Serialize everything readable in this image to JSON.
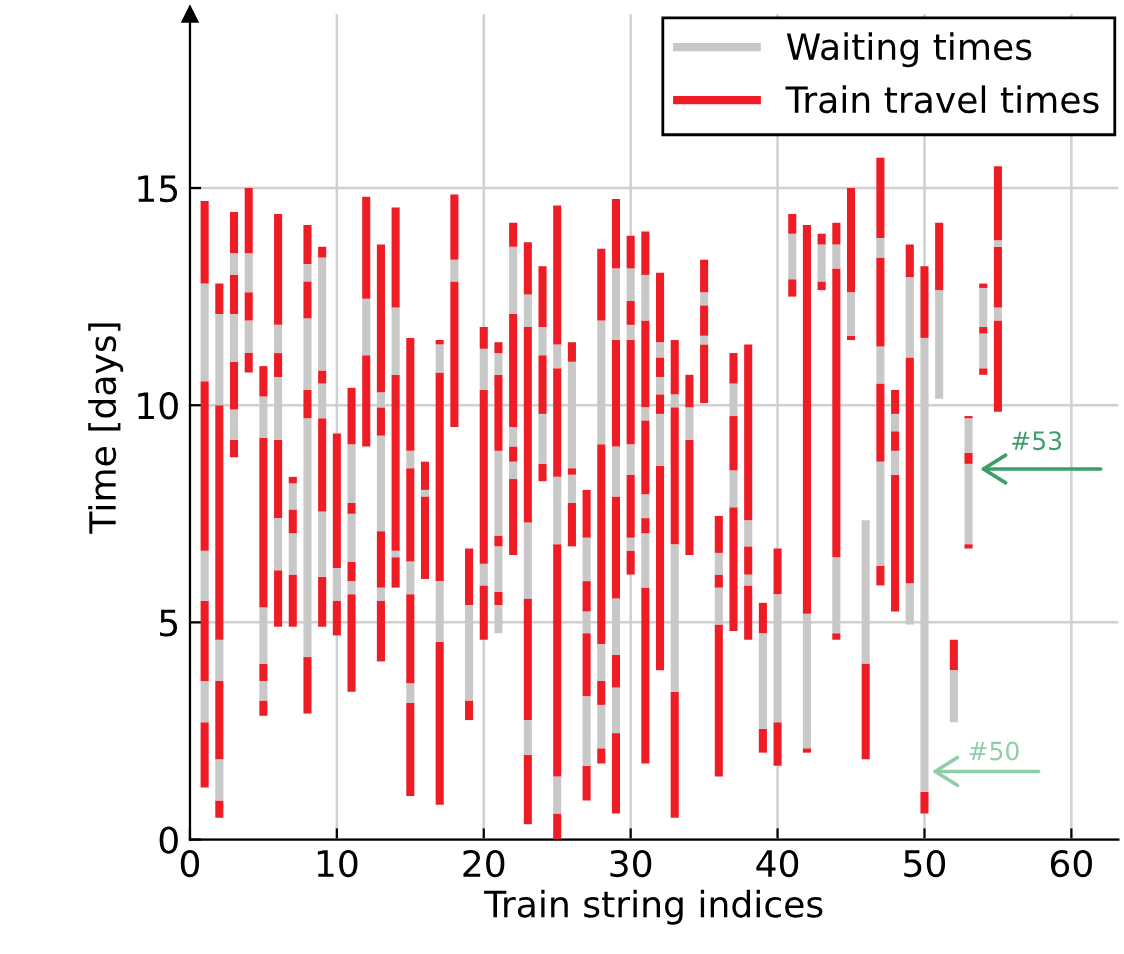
{
  "chart_data": {
    "type": "bar",
    "xlabel": "Train string indices",
    "ylabel": "Time [days]",
    "x": [
      1,
      2,
      3,
      4,
      5,
      6,
      7,
      8,
      9,
      10,
      11,
      12,
      13,
      14,
      15,
      16,
      17,
      18,
      19,
      20,
      21,
      22,
      23,
      24,
      25,
      26,
      27,
      28,
      29,
      30,
      31,
      32,
      33,
      34,
      35,
      36,
      37,
      38,
      39,
      40,
      41,
      42,
      43,
      44,
      45,
      46,
      47,
      48,
      49,
      50,
      51,
      52,
      53,
      54,
      55
    ],
    "series": [
      {
        "name": "Train travel times",
        "color": "#ee1c25",
        "base": [
          1.2,
          0.5,
          8.8,
          10.75,
          2.85,
          4.9,
          4.9,
          2.9,
          4.9,
          4.7,
          3.4,
          9.05,
          4.1,
          5.8,
          1.0,
          6.0,
          0.8,
          9.5,
          2.75,
          4.6,
          null,
          6.55,
          0.35,
          8.25,
          0,
          6.75,
          0.9,
          1.75,
          0.6,
          6.1,
          1.75,
          3.9,
          0.5,
          6.55,
          10.05,
          1.45,
          4.8,
          4.6,
          2.0,
          1.7,
          12.5,
          2.0,
          12.65,
          4.6,
          11.5,
          1.85,
          5.85,
          5.25,
          null,
          0.6,
          null,
          null,
          6.7,
          10.7,
          9.85
        ],
        "values": [
          1.5,
          0.4,
          0.4,
          0.45,
          0.35,
          1.3,
          1.2,
          1.3,
          1.15,
          0.8,
          2.25,
          2.1,
          1.4,
          0.7,
          2.15,
          1.9,
          3.75,
          3.35,
          0.45,
          1.25,
          null,
          1.75,
          1.6,
          0.4,
          0.6,
          1.0,
          0.8,
          0.35,
          1.85,
          0.55,
          4.05,
          4.7,
          2.9,
          2.65,
          1.35,
          3.5,
          2.85,
          1.25,
          0.55,
          1.0,
          0.4,
          0.1,
          0.2,
          0.15,
          0.1,
          2.2,
          0.45,
          3.15,
          null,
          0.5,
          null,
          null,
          0.1,
          0.15,
          2.1
        ]
      },
      {
        "name": "Waiting times",
        "color": "#c8c8c8",
        "base": [
          2.7,
          0.9,
          9.2,
          11.2,
          3.2,
          6.2,
          6.1,
          4.2,
          6.05,
          5.5,
          5.65,
          11.15,
          5.5,
          6.5,
          3.15,
          7.9,
          4.55,
          12.85,
          3.2,
          5.85,
          4.75,
          8.3,
          1.95,
          8.65,
          0.6,
          7.75,
          1.7,
          2.1,
          2.45,
          6.65,
          5.8,
          8.6,
          3.4,
          9.2,
          11.4,
          4.95,
          7.65,
          5.85,
          2.55,
          2.7,
          12.9,
          2.1,
          12.85,
          4.75,
          11.6,
          4.05,
          6.3,
          8.4,
          4.95,
          1.1,
          10.15,
          2.7,
          6.8,
          10.85,
          11.95
        ],
        "values": [
          0.95,
          0.95,
          0.7,
          0.75,
          0.45,
          1.2,
          0.95,
          5.5,
          1.5,
          0.75,
          0.3,
          1.3,
          0.3,
          0.15,
          0.45,
          0.15,
          1.4,
          0.5,
          2.2,
          0.5,
          0.65,
          0.4,
          0.8,
          1.15,
          0.85,
          0.65,
          1.6,
          1.0,
          1.05,
          0.3,
          1.25,
          1.2,
          3.4,
          0.75,
          0.2,
          0.85,
          0.85,
          0.25,
          2.2,
          2.95,
          1.05,
          3.1,
          0.85,
          1.75,
          1.0,
          3.3,
          2.4,
          0.55,
          0.95,
          10.45,
          2.5,
          1.2,
          1.85,
          0.8,
          0.3
        ]
      },
      {
        "color": "#ee1c25",
        "base": [
          3.65,
          1.85,
          9.9,
          11.95,
          3.65,
          7.4,
          7.05,
          9.7,
          7.55,
          6.25,
          5.95,
          12.45,
          5.8,
          6.65,
          3.6,
          8.05,
          5.95,
          13.35,
          5.4,
          6.35,
          5.4,
          8.7,
          2.75,
          9.8,
          1.45,
          8.4,
          3.3,
          3.1,
          3.5,
          6.95,
          7.05,
          9.8,
          6.8,
          9.95,
          11.6,
          5.8,
          8.5,
          6.1,
          4.75,
          5.65,
          13.95,
          5.2,
          13.7,
          6.5,
          12.6,
          null,
          8.7,
          8.95,
          5.9,
          11.55,
          12.65,
          3.9,
          8.65,
          11.65,
          12.25
        ],
        "values": [
          1.85,
          1.8,
          1.1,
          0.65,
          0.4,
          1.8,
          0.55,
          0.65,
          2.15,
          3.1,
          0.45,
          2.35,
          1.3,
          4.05,
          2.05,
          0.65,
          4.8,
          1.5,
          1.3,
          4.0,
          0.3,
          0.35,
          2.8,
          1.35,
          5.35,
          0.15,
          1.45,
          0.55,
          0.75,
          1.45,
          0.35,
          0.45,
          3.15,
          0.75,
          0.7,
          0.3,
          1.25,
          0.65,
          0.7,
          1.05,
          0.45,
          8.95,
          0.25,
          6.65,
          2.4,
          null,
          1.8,
          0.45,
          5.2,
          1.65,
          1.55,
          0.7,
          0.25,
          0.15,
          1.4
        ]
      },
      {
        "color": "#c8c8c8",
        "base": [
          5.5,
          3.65,
          11.0,
          12.6,
          4.05,
          9.2,
          7.6,
          10.35,
          9.7,
          null,
          6.4,
          null,
          7.1,
          10.7,
          5.65,
          null,
          10.75,
          null,
          null,
          10.35,
          5.7,
          9.05,
          5.55,
          11.15,
          6.8,
          8.55,
          4.75,
          3.65,
          4.25,
          8.4,
          7.4,
          10.25,
          9.95,
          null,
          12.3,
          6.1,
          9.75,
          6.75,
          null,
          null,
          null,
          null,
          null,
          13.15,
          null,
          null,
          10.5,
          9.4,
          11.1,
          null,
          null,
          null,
          8.9,
          11.8,
          13.65
        ],
        "values": [
          1.15,
          0.95,
          1.1,
          0.9,
          1.3,
          1.45,
          0.6,
          1.65,
          0.8,
          null,
          1.1,
          null,
          2.2,
          1.55,
          0.75,
          null,
          0.65,
          null,
          null,
          0.95,
          1.05,
          0.45,
          1.75,
          0.65,
          1.55,
          2.45,
          0.5,
          0.85,
          1.3,
          0.7,
          0.55,
          0.4,
          0.3,
          null,
          0.3,
          0.5,
          0.75,
          0.6,
          null,
          null,
          null,
          null,
          null,
          0.55,
          null,
          null,
          0.85,
          0.4,
          1.85,
          null,
          null,
          null,
          0.8,
          0.9,
          0.15
        ]
      },
      {
        "color": "#ee1c25",
        "base": [
          6.65,
          4.6,
          12.1,
          13.5,
          5.35,
          10.65,
          8.2,
          12.0,
          10.5,
          null,
          7.5,
          null,
          9.3,
          12.25,
          6.4,
          null,
          11.4,
          null,
          null,
          11.3,
          6.75,
          9.5,
          7.3,
          11.8,
          8.35,
          11.0,
          5.25,
          4.5,
          5.55,
          9.1,
          7.95,
          10.65,
          10.25,
          null,
          12.6,
          6.6,
          10.5,
          7.35,
          null,
          null,
          null,
          null,
          null,
          13.7,
          null,
          null,
          11.35,
          9.8,
          12.95,
          null,
          null,
          null,
          9.7,
          12.7,
          13.8
        ],
        "values": [
          3.9,
          5.4,
          0.9,
          1.5,
          3.9,
          0.55,
          0.15,
          0.85,
          0.3,
          null,
          0.25,
          null,
          0.65,
          2.3,
          2.15,
          null,
          0.1,
          null,
          null,
          0.5,
          0.25,
          2.6,
          4.5,
          1.4,
          2.5,
          0.45,
          0.7,
          4.6,
          2.35,
          2.4,
          1.7,
          0.45,
          1.25,
          null,
          0.75,
          0.85,
          0.7,
          4.05,
          null,
          null,
          null,
          null,
          null,
          0.5,
          null,
          null,
          2.05,
          0.55,
          0.75,
          null,
          null,
          null,
          0.05,
          0.1,
          1.7
        ]
      },
      {
        "color": "#c8c8c8",
        "base": [
          10.55,
          10.0,
          13.0,
          null,
          9.25,
          11.2,
          null,
          12.85,
          10.8,
          null,
          7.75,
          null,
          9.95,
          null,
          8.55,
          null,
          null,
          null,
          null,
          null,
          7.0,
          12.1,
          11.8,
          null,
          10.85,
          null,
          5.95,
          9.1,
          7.9,
          11.5,
          9.65,
          11.1,
          null,
          null,
          null,
          null,
          null,
          null,
          null,
          null,
          null,
          null,
          null,
          null,
          null,
          null,
          13.4,
          null,
          null,
          null,
          null,
          null,
          null,
          null,
          null
        ],
        "values": [
          2.25,
          2.1,
          0.5,
          null,
          0.95,
          0.65,
          null,
          0.4,
          2.6,
          null,
          1.35,
          null,
          0.35,
          null,
          0.4,
          null,
          null,
          null,
          null,
          null,
          1.95,
          1.55,
          0.75,
          null,
          0.55,
          null,
          1.0,
          2.85,
          1.15,
          0.35,
          0.3,
          0.35,
          null,
          null,
          null,
          null,
          null,
          null,
          null,
          null,
          null,
          null,
          null,
          null,
          null,
          null,
          0.45,
          null,
          null,
          null,
          null,
          null,
          null,
          null,
          null
        ]
      },
      {
        "color": "#ee1c25",
        "base": [
          12.8,
          12.1,
          13.5,
          null,
          10.2,
          11.85,
          null,
          13.25,
          13.4,
          null,
          9.1,
          null,
          10.3,
          null,
          8.95,
          null,
          null,
          null,
          null,
          null,
          8.95,
          13.65,
          12.55,
          null,
          11.4,
          null,
          6.95,
          11.95,
          9.05,
          11.85,
          9.95,
          11.45,
          null,
          null,
          null,
          null,
          null,
          null,
          null,
          null,
          null,
          null,
          null,
          null,
          null,
          null,
          13.85,
          null,
          null,
          null,
          null,
          null,
          null,
          null,
          null
        ],
        "values": [
          1.9,
          0.7,
          0.95,
          null,
          0.7,
          2.55,
          null,
          0.9,
          0.25,
          null,
          1.3,
          null,
          3.4,
          null,
          2.6,
          null,
          null,
          null,
          null,
          null,
          1.75,
          0.55,
          1.2,
          null,
          3.2,
          null,
          1.1,
          1.65,
          2.45,
          0.55,
          2.0,
          1.6,
          null,
          null,
          null,
          null,
          null,
          null,
          null,
          null,
          null,
          null,
          null,
          null,
          null,
          null,
          1.85,
          null,
          null,
          null,
          null,
          null,
          null,
          null,
          null
        ]
      },
      {
        "color": "#c8c8c8",
        "base": [
          null,
          null,
          null,
          null,
          null,
          null,
          null,
          null,
          null,
          null,
          null,
          null,
          null,
          null,
          null,
          null,
          null,
          null,
          null,
          null,
          10.7,
          null,
          null,
          null,
          null,
          null,
          null,
          null,
          11.5,
          12.4,
          11.95,
          null,
          null,
          null,
          null,
          null,
          null,
          null,
          null,
          null,
          null,
          null,
          null,
          null,
          null,
          null,
          null,
          null,
          null,
          null,
          null,
          null,
          null,
          null,
          null
        ],
        "values": [
          null,
          null,
          null,
          null,
          null,
          null,
          null,
          null,
          null,
          null,
          null,
          null,
          null,
          null,
          null,
          null,
          null,
          null,
          null,
          null,
          0.5,
          null,
          null,
          null,
          null,
          null,
          null,
          null,
          1.65,
          0.75,
          1.05,
          null,
          null,
          null,
          null,
          null,
          null,
          null,
          null,
          null,
          null,
          null,
          null,
          null,
          null,
          null,
          null,
          null,
          null,
          null,
          null,
          null,
          null,
          null,
          null
        ]
      },
      {
        "color": "#ee1c25",
        "base": [
          null,
          null,
          null,
          null,
          null,
          null,
          null,
          null,
          null,
          null,
          null,
          null,
          null,
          null,
          null,
          null,
          null,
          null,
          null,
          null,
          11.2,
          null,
          null,
          null,
          null,
          null,
          null,
          null,
          13.15,
          13.15,
          13.0,
          null,
          null,
          null,
          null,
          null,
          null,
          null,
          null,
          null,
          null,
          null,
          null,
          null,
          null,
          null,
          null,
          null,
          null,
          null,
          null,
          null,
          null,
          null,
          null
        ],
        "values": [
          null,
          null,
          null,
          null,
          null,
          null,
          null,
          null,
          null,
          null,
          null,
          null,
          null,
          null,
          null,
          null,
          null,
          null,
          null,
          null,
          0.25,
          null,
          null,
          null,
          null,
          null,
          null,
          null,
          1.6,
          0.75,
          1.0,
          null,
          null,
          null,
          null,
          null,
          null,
          null,
          null,
          null,
          null,
          null,
          null,
          null,
          null,
          null,
          null,
          null,
          null,
          null,
          null,
          null,
          null,
          null,
          null
        ]
      }
    ],
    "xlim": [
      0,
      63.2
    ],
    "ylim": [
      0,
      19
    ],
    "xticks": [
      0,
      10,
      20,
      30,
      40,
      50,
      60
    ],
    "yticks": [
      0,
      5,
      10,
      15
    ],
    "grid": true,
    "legend": "top right",
    "annotations": [
      "#53",
      "#50"
    ]
  }
}
